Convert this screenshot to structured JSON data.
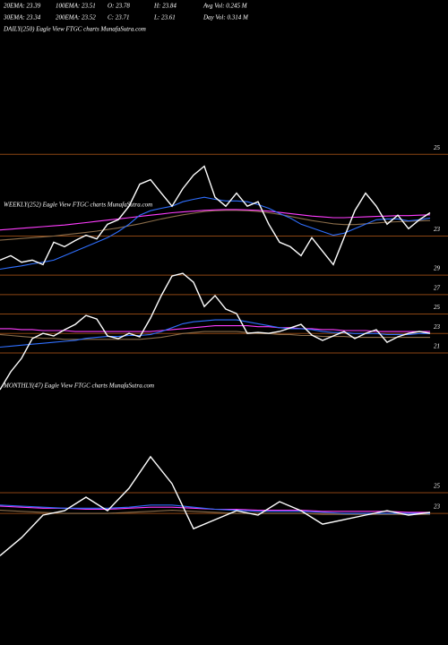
{
  "header": {
    "rows": [
      [
        "20EMA: 23.39",
        "100EMA: 23.51",
        "O: 23.78",
        "H: 23.84",
        "Avg Vol: 0.245  M"
      ],
      [
        "30EMA: 23.34",
        "200EMA: 23.52",
        "C: 23.71",
        "L: 23.61",
        "Day Vol: 0.314  M"
      ]
    ]
  },
  "chart_data": [
    {
      "type": "line",
      "title": "DAILY(250) Eagle  View  FTGC charts MunafaSutra.com",
      "ylim": [
        22.2,
        27.9
      ],
      "yticks": [
        25,
        23
      ],
      "grid": true,
      "grid_color": "#8b4513",
      "series": [
        {
          "color": "#8b6d4a",
          "values": [
            22.9,
            22.92,
            22.94,
            22.96,
            22.98,
            23.0,
            23.03,
            23.06,
            23.09,
            23.12,
            23.16,
            23.2,
            23.25,
            23.3,
            23.36,
            23.42,
            23.47,
            23.52,
            23.56,
            23.6,
            23.62,
            23.63,
            23.63,
            23.62,
            23.6,
            23.57,
            23.53,
            23.48,
            23.43,
            23.38,
            23.34,
            23.3,
            23.28,
            23.28,
            23.3,
            23.32,
            23.34,
            23.35,
            23.36,
            23.37,
            23.38
          ]
        },
        {
          "color": "#ff3cff",
          "values": [
            23.15,
            23.17,
            23.19,
            23.21,
            23.23,
            23.25,
            23.27,
            23.3,
            23.33,
            23.36,
            23.39,
            23.42,
            23.45,
            23.48,
            23.51,
            23.54,
            23.57,
            23.59,
            23.61,
            23.63,
            23.64,
            23.65,
            23.65,
            23.64,
            23.63,
            23.61,
            23.58,
            23.55,
            23.52,
            23.49,
            23.47,
            23.45,
            23.45,
            23.46,
            23.47,
            23.48,
            23.49,
            23.5,
            23.5,
            23.51,
            23.52
          ]
        },
        {
          "color": "#2f6fff",
          "values": [
            22.19,
            22.23,
            22.27,
            22.32,
            22.36,
            22.41,
            22.52,
            22.63,
            22.74,
            22.85,
            22.96,
            23.11,
            23.29,
            23.51,
            23.62,
            23.68,
            23.73,
            23.84,
            23.9,
            23.95,
            23.9,
            23.86,
            23.86,
            23.84,
            23.77,
            23.68,
            23.55,
            23.44,
            23.29,
            23.2,
            23.11,
            23.02,
            23.07,
            23.18,
            23.29,
            23.4,
            23.42,
            23.42,
            23.37,
            23.4,
            23.44
          ]
        },
        {
          "color": "#ffffff",
          "values": [
            22.41,
            22.52,
            22.36,
            22.41,
            22.3,
            22.85,
            22.74,
            22.89,
            23.02,
            22.93,
            23.29,
            23.4,
            23.73,
            24.27,
            24.38,
            24.05,
            23.73,
            24.16,
            24.49,
            24.71,
            23.95,
            23.73,
            24.05,
            23.73,
            23.84,
            23.29,
            22.85,
            22.74,
            22.52,
            22.96,
            22.63,
            22.3,
            22.96,
            23.62,
            24.05,
            23.73,
            23.29,
            23.51,
            23.18,
            23.4,
            23.57
          ]
        }
      ]
    },
    {
      "type": "line",
      "title": "WEEKLY(252) Eagle  View  FTGC charts MunafaSutra.com",
      "ylim": [
        16.77,
        36
      ],
      "yticks": [
        29,
        27,
        25,
        23,
        21
      ],
      "grid": true,
      "grid_color": "#8b4513",
      "series": [
        {
          "color": "#8b6d4a",
          "values": [
            22.9,
            22.8,
            22.7,
            22.6,
            22.5,
            22.5,
            22.4,
            22.4,
            22.4,
            22.4,
            22.4,
            22.4,
            22.4,
            22.4,
            22.5,
            22.6,
            22.8,
            23.0,
            23.1,
            23.2,
            23.2,
            23.2,
            23.2,
            23.1,
            23.0,
            23.0,
            22.9,
            22.9,
            22.8,
            22.8,
            22.7,
            22.7,
            22.7,
            22.6,
            22.6,
            22.6,
            22.6,
            22.6,
            22.6,
            22.6,
            22.6
          ]
        },
        {
          "color": "#ff3cff",
          "values": [
            23.5,
            23.5,
            23.4,
            23.4,
            23.3,
            23.3,
            23.3,
            23.2,
            23.2,
            23.2,
            23.2,
            23.2,
            23.2,
            23.2,
            23.2,
            23.3,
            23.4,
            23.5,
            23.6,
            23.7,
            23.8,
            23.8,
            23.8,
            23.8,
            23.7,
            23.7,
            23.6,
            23.6,
            23.5,
            23.5,
            23.4,
            23.4,
            23.3,
            23.3,
            23.3,
            23.2,
            23.2,
            23.2,
            23.2,
            23.2,
            23.2
          ]
        },
        {
          "color": "#2f6fff",
          "values": [
            21.6,
            21.7,
            21.8,
            21.9,
            22.0,
            22.1,
            22.2,
            22.3,
            22.5,
            22.6,
            22.7,
            22.7,
            22.8,
            22.8,
            22.9,
            23.2,
            23.6,
            24.0,
            24.2,
            24.3,
            24.4,
            24.4,
            24.4,
            24.2,
            24.0,
            23.8,
            23.6,
            23.5,
            23.5,
            23.4,
            23.2,
            23.1,
            23.1,
            23.0,
            23.0,
            23.0,
            22.9,
            22.9,
            22.9,
            23.0,
            23.0
          ]
        },
        {
          "color": "#ffffff",
          "values": [
            17.23,
            19.07,
            20.45,
            22.47,
            23.02,
            22.75,
            23.39,
            23.94,
            24.86,
            24.49,
            22.75,
            22.47,
            23.02,
            22.66,
            24.59,
            26.89,
            28.91,
            29.18,
            28.26,
            25.78,
            26.89,
            25.51,
            25.05,
            23.02,
            23.11,
            23.02,
            23.21,
            23.57,
            23.94,
            22.84,
            22.29,
            22.75,
            23.21,
            22.47,
            23.02,
            23.39,
            22.1,
            22.66,
            23.02,
            23.21,
            23.02
          ]
        }
      ]
    },
    {
      "type": "line",
      "title": "MONTHLY(47) Eagle  View  FTGC charts MunafaSutra.com",
      "ylim": [
        12,
        35.4
      ],
      "yticks": [
        25,
        23
      ],
      "grid": true,
      "grid_color": "#8b4513",
      "series": [
        {
          "color": "#8b6d4a",
          "values": [
            23.3,
            23.2,
            23.1,
            23.0,
            23.0,
            23.0,
            23.1,
            23.2,
            23.3,
            23.2,
            23.1,
            23.0,
            23.0,
            23.0,
            23.0,
            22.9,
            22.9,
            22.9,
            22.9,
            22.9,
            22.9
          ]
        },
        {
          "color": "#ff3cff",
          "values": [
            23.7,
            23.6,
            23.5,
            23.5,
            23.4,
            23.4,
            23.5,
            23.6,
            23.6,
            23.5,
            23.4,
            23.4,
            23.3,
            23.3,
            23.3,
            23.2,
            23.2,
            23.2,
            23.2,
            23.1,
            23.1
          ]
        },
        {
          "color": "#2f6fff",
          "values": [
            23.8,
            23.7,
            23.6,
            23.5,
            23.5,
            23.5,
            23.6,
            23.8,
            23.8,
            23.6,
            23.4,
            23.3,
            23.2,
            23.2,
            23.2,
            23.1,
            23.0,
            23.0,
            23.0,
            23.0,
            23.0
          ]
        },
        {
          "color": "#ffffff",
          "values": [
            18.91,
            20.65,
            22.83,
            23.26,
            24.57,
            23.26,
            25.43,
            28.48,
            25.87,
            21.52,
            22.39,
            23.26,
            22.83,
            24.13,
            23.26,
            21.96,
            22.39,
            22.83,
            23.26,
            22.83,
            23.09
          ]
        }
      ]
    }
  ]
}
